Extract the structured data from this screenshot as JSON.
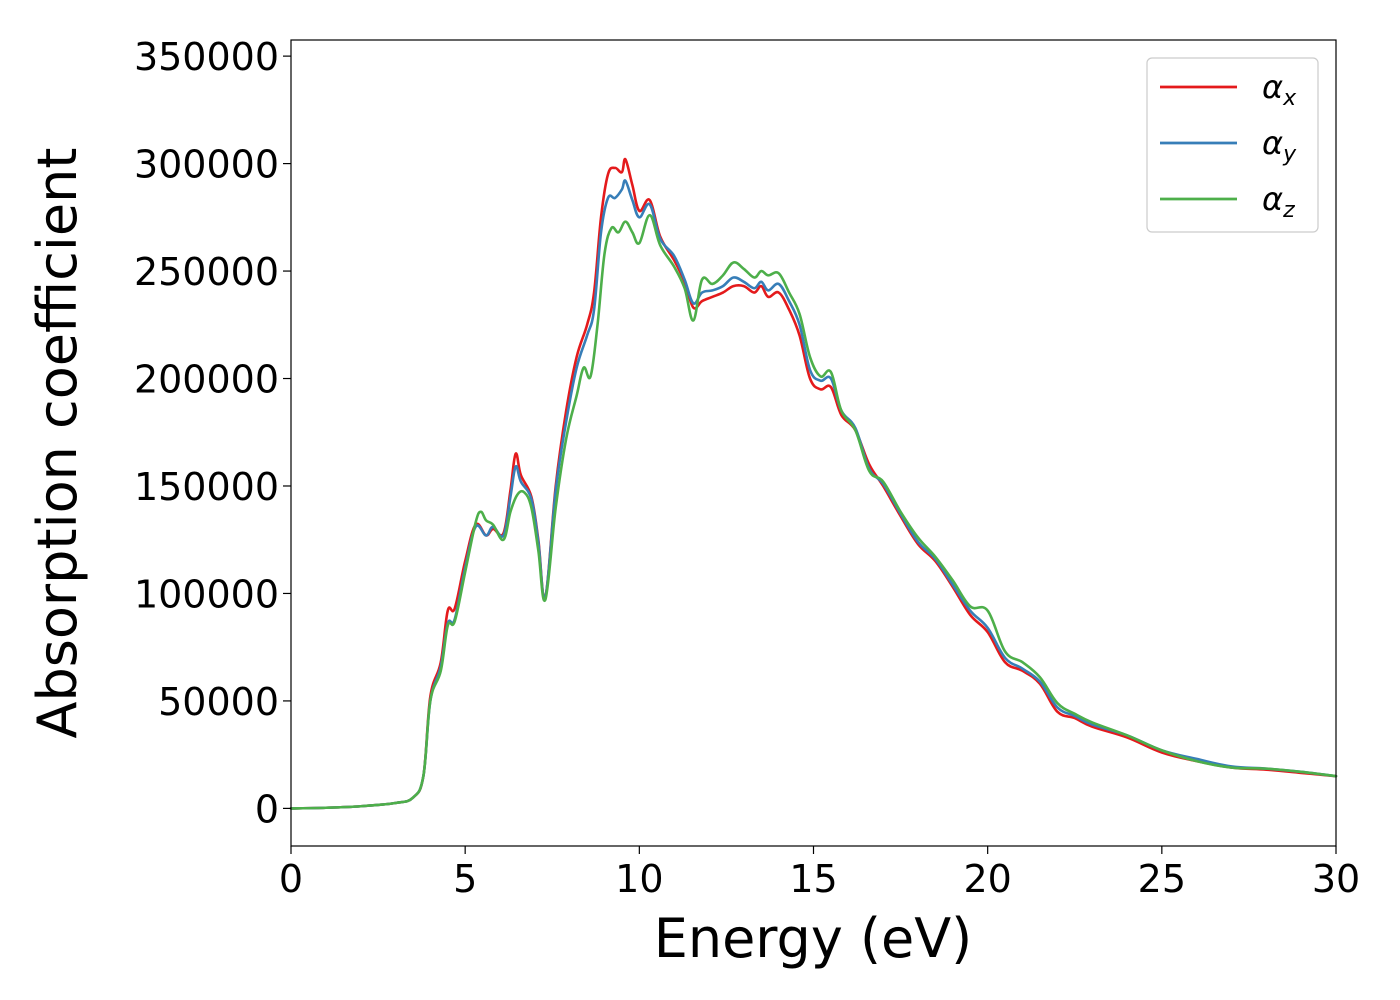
{
  "chart_data": {
    "type": "line",
    "xlabel": "Energy (eV)",
    "ylabel": "Absorption coefficient",
    "xlim": [
      0,
      30
    ],
    "ylim": [
      -17500,
      357500
    ],
    "xticks": [
      "0",
      "5",
      "10",
      "15",
      "20",
      "25",
      "30"
    ],
    "yticks": [
      "0",
      "50000",
      "100000",
      "150000",
      "200000",
      "250000",
      "300000",
      "350000"
    ],
    "grid": false,
    "legend_position": "top-right",
    "series": [
      {
        "name": "α",
        "subscript": "x",
        "color": "#e41a1c",
        "x": [
          0,
          1,
          2,
          3,
          3.5,
          3.8,
          4.0,
          4.3,
          4.5,
          4.7,
          5.0,
          5.3,
          5.6,
          5.8,
          6.1,
          6.3,
          6.45,
          6.6,
          6.9,
          7.1,
          7.3,
          7.6,
          7.9,
          8.2,
          8.5,
          8.7,
          8.9,
          9.1,
          9.3,
          9.5,
          9.6,
          9.8,
          10.0,
          10.3,
          10.6,
          11.0,
          11.3,
          11.55,
          11.8,
          12.1,
          12.4,
          12.7,
          13.0,
          13.3,
          13.5,
          13.7,
          14.0,
          14.3,
          14.6,
          14.9,
          15.2,
          15.5,
          15.8,
          16.2,
          16.6,
          17.0,
          17.5,
          18.0,
          18.5,
          19.0,
          19.5,
          20.0,
          20.5,
          21.0,
          21.5,
          22.0,
          22.5,
          23.0,
          24.0,
          25.0,
          26.0,
          27.0,
          28.0,
          29.0,
          30.0
        ],
        "values": [
          0,
          300,
          1000,
          2500,
          5000,
          15000,
          52000,
          68000,
          92000,
          93000,
          115000,
          132000,
          127000,
          130000,
          128000,
          148000,
          165000,
          155000,
          145000,
          125000,
          98000,
          150000,
          185000,
          210000,
          225000,
          240000,
          275000,
          295000,
          298000,
          296000,
          302000,
          290000,
          278000,
          283000,
          266000,
          255000,
          245000,
          233000,
          236000,
          238000,
          240000,
          243000,
          243000,
          240000,
          243000,
          238000,
          240000,
          232000,
          220000,
          200000,
          195000,
          196000,
          183000,
          176000,
          160000,
          150000,
          136000,
          123000,
          115000,
          103000,
          90000,
          82000,
          68000,
          64000,
          58000,
          45000,
          42000,
          38000,
          33000,
          26000,
          22000,
          19000,
          18000,
          16500,
          15000
        ]
      },
      {
        "name": "α",
        "subscript": "y",
        "color": "#377eb8",
        "x": [
          0,
          1,
          2,
          3,
          3.5,
          3.8,
          4.0,
          4.3,
          4.5,
          4.7,
          5.0,
          5.3,
          5.6,
          5.8,
          6.1,
          6.3,
          6.45,
          6.6,
          6.9,
          7.1,
          7.3,
          7.6,
          7.9,
          8.2,
          8.5,
          8.7,
          8.9,
          9.1,
          9.3,
          9.5,
          9.6,
          9.8,
          10.0,
          10.3,
          10.6,
          11.0,
          11.3,
          11.55,
          11.8,
          12.1,
          12.4,
          12.7,
          13.0,
          13.3,
          13.5,
          13.7,
          14.0,
          14.3,
          14.6,
          14.9,
          15.2,
          15.5,
          15.8,
          16.2,
          16.6,
          17.0,
          17.5,
          18.0,
          18.5,
          19.0,
          19.5,
          20.0,
          20.5,
          21.0,
          21.5,
          22.0,
          22.5,
          23.0,
          24.0,
          25.0,
          26.0,
          27.0,
          28.0,
          29.0,
          30.0
        ],
        "values": [
          0,
          300,
          1000,
          2500,
          5000,
          15000,
          50000,
          66000,
          86000,
          88000,
          112000,
          131000,
          127000,
          131000,
          127000,
          145000,
          159000,
          152000,
          144000,
          124000,
          98000,
          148000,
          180000,
          205000,
          220000,
          232000,
          268000,
          284000,
          284000,
          288000,
          292000,
          283000,
          275000,
          281000,
          265000,
          257000,
          246000,
          235000,
          240000,
          241000,
          243000,
          247000,
          245000,
          242000,
          245000,
          241000,
          244000,
          236000,
          225000,
          204000,
          199000,
          200000,
          185000,
          177000,
          158000,
          151000,
          137000,
          124000,
          116000,
          104000,
          92000,
          84000,
          70000,
          65000,
          59000,
          47000,
          43000,
          39000,
          34000,
          27000,
          23000,
          19500,
          18500,
          17000,
          15000
        ]
      },
      {
        "name": "α",
        "subscript": "z",
        "color": "#4daf4a",
        "x": [
          0,
          1,
          2,
          3,
          3.5,
          3.8,
          4.0,
          4.3,
          4.5,
          4.7,
          5.0,
          5.3,
          5.45,
          5.6,
          5.8,
          6.1,
          6.3,
          6.5,
          6.7,
          6.9,
          7.1,
          7.3,
          7.6,
          7.9,
          8.2,
          8.4,
          8.6,
          8.8,
          9.0,
          9.2,
          9.4,
          9.6,
          9.8,
          10.0,
          10.3,
          10.6,
          11.0,
          11.3,
          11.55,
          11.8,
          12.1,
          12.4,
          12.7,
          13.0,
          13.3,
          13.5,
          13.7,
          14.0,
          14.3,
          14.6,
          14.9,
          15.2,
          15.5,
          15.8,
          16.2,
          16.6,
          17.0,
          17.5,
          18.0,
          18.5,
          19.0,
          19.5,
          20.0,
          20.5,
          21.0,
          21.5,
          22.0,
          22.5,
          23.0,
          24.0,
          25.0,
          26.0,
          27.0,
          28.0,
          29.0,
          30.0
        ],
        "values": [
          0,
          300,
          1000,
          2500,
          5000,
          15000,
          50000,
          64000,
          85000,
          87000,
          110000,
          133000,
          138000,
          134000,
          132000,
          125000,
          138000,
          146000,
          147000,
          140000,
          120000,
          97000,
          140000,
          172000,
          192000,
          205000,
          201000,
          225000,
          258000,
          270000,
          268000,
          273000,
          268000,
          263000,
          276000,
          262000,
          252000,
          242000,
          227000,
          246000,
          244000,
          248000,
          254000,
          251000,
          247000,
          250000,
          248000,
          249000,
          240000,
          230000,
          210000,
          201000,
          203000,
          185000,
          176000,
          157000,
          152000,
          138000,
          126000,
          117000,
          106000,
          94000,
          92000,
          73000,
          68000,
          61000,
          49000,
          44000,
          40000,
          34000,
          27000,
          22000,
          19000,
          18500,
          17000,
          15000
        ]
      }
    ]
  }
}
